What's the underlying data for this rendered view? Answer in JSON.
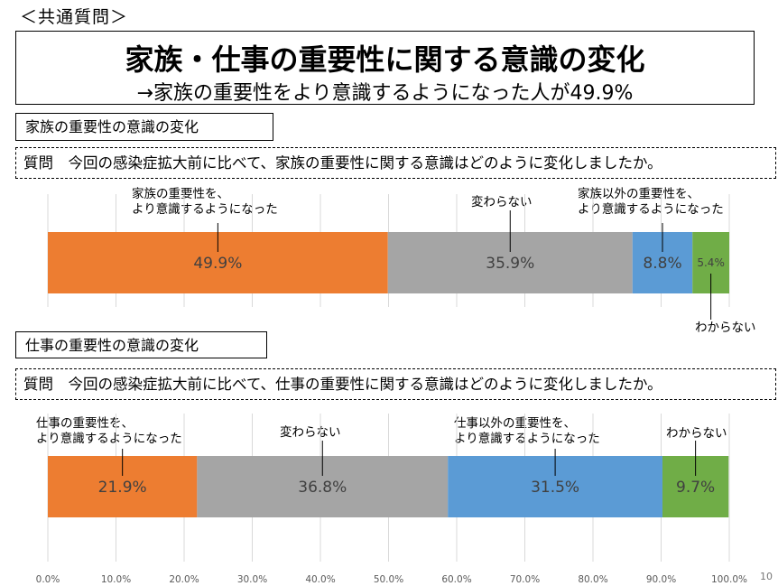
{
  "header": {
    "section_tag": "＜共通質問＞",
    "title": "家族・仕事の重要性に関する意識の変化",
    "subtitle": "→家族の重要性をより意識するようになった人が49.9%"
  },
  "page_number": "10",
  "colors": {
    "orange": "#ed7d31",
    "gray": "#a5a5a5",
    "blue": "#5b9bd5",
    "green": "#70ad47"
  },
  "chart_data": [
    {
      "type": "bar",
      "orientation": "horizontal-stacked-100",
      "section_label": "家族の重要性の意識の変化",
      "question": "質問　今回の感染症拡大前に比べて、家族の重要性に関する意識はどのように変化しましたか。",
      "series": [
        {
          "name": "家族の重要性を、\nより意識するようになった",
          "value": 49.9,
          "label": "49.9%",
          "color": "#ed7d31"
        },
        {
          "name": "変わらない",
          "value": 35.9,
          "label": "35.9%",
          "color": "#a5a5a5"
        },
        {
          "name": "家族以外の重要性を、\nより意識するようになった",
          "value": 8.8,
          "label": "8.8%",
          "color": "#5b9bd5"
        },
        {
          "name": "わからない",
          "value": 5.4,
          "label": "5.4%",
          "color": "#70ad47"
        }
      ]
    },
    {
      "type": "bar",
      "orientation": "horizontal-stacked-100",
      "section_label": "仕事の重要性の意識の変化",
      "question": "質問　今回の感染症拡大前に比べて、仕事の重要性に関する意識はどのように変化しましたか。",
      "series": [
        {
          "name": "仕事の重要性を、\nより意識するようになった",
          "value": 21.9,
          "label": "21.9%",
          "color": "#ed7d31"
        },
        {
          "name": "変わらない",
          "value": 36.8,
          "label": "36.8%",
          "color": "#a5a5a5"
        },
        {
          "name": "仕事以外の重要性を、\nより意識するようになった",
          "value": 31.5,
          "label": "31.5%",
          "color": "#5b9bd5"
        },
        {
          "name": "わからない",
          "value": 9.7,
          "label": "9.7%",
          "color": "#70ad47"
        }
      ]
    }
  ],
  "x_axis": {
    "ticks": [
      "0.0%",
      "10.0%",
      "20.0%",
      "30.0%",
      "40.0%",
      "50.0%",
      "60.0%",
      "70.0%",
      "80.0%",
      "90.0%",
      "100.0%"
    ],
    "xlim": [
      0,
      100
    ],
    "grid": true
  }
}
